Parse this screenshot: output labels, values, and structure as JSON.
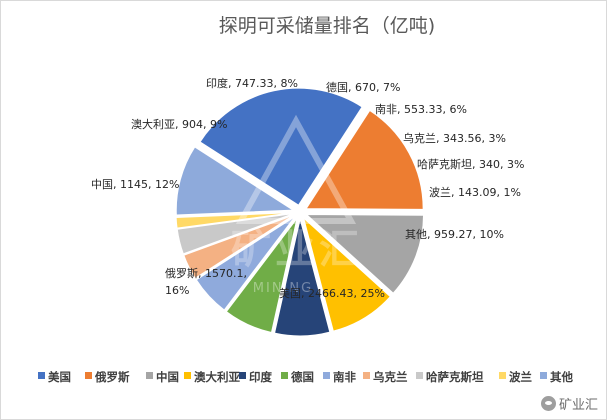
{
  "chart_data": {
    "type": "pie",
    "title": "探明可采储量排名（亿吨)",
    "series": [
      {
        "name": "美国",
        "value": 2466.43,
        "percent": "25%",
        "label": "美国, 2466.43, 25%",
        "color": "#4472c4"
      },
      {
        "name": "俄罗斯",
        "value": 1570.1,
        "percent": "16%",
        "label_line1": "俄罗斯, 1570.1,",
        "label_line2": "16%",
        "color": "#ed7d31"
      },
      {
        "name": "中国",
        "value": 1145,
        "percent": "12%",
        "label": "中国, 1145, 12%",
        "color": "#a5a5a5"
      },
      {
        "name": "澳大利亚",
        "value": 904,
        "percent": "9%",
        "label": "澳大利亚, 904, 9%",
        "color": "#ffc000"
      },
      {
        "name": "印度",
        "value": 747.33,
        "percent": "8%",
        "label": "印度, 747.33, 8%",
        "color": "#264478"
      },
      {
        "name": "德国",
        "value": 670,
        "percent": "7%",
        "label": "德国, 670, 7%",
        "color": "#70ad47"
      },
      {
        "name": "南非",
        "value": 553.33,
        "percent": "6%",
        "label": "南非, 553.33, 6%",
        "color": "#8faadc"
      },
      {
        "name": "乌克兰",
        "value": 343.56,
        "percent": "3%",
        "label": "乌克兰, 343.56, 3%",
        "color": "#f4b183"
      },
      {
        "name": "哈萨克斯坦",
        "value": 340,
        "percent": "3%",
        "label": "哈萨克斯坦, 340, 3%",
        "color": "#c9c9c9"
      },
      {
        "name": "波兰",
        "value": 143.09,
        "percent": "1%",
        "label": "波兰, 143.09, 1%",
        "color": "#ffd966"
      },
      {
        "name": "其他",
        "value": 959.27,
        "percent": "10%",
        "label": "其他, 959.27, 10%",
        "color": "#8eaadb"
      }
    ],
    "legend": {
      "position": "bottom"
    }
  },
  "watermark": {
    "cn": "矿业汇",
    "en": "MINING"
  },
  "corner_watermark": {
    "text": "矿业汇",
    "icon": "wechat-icon"
  }
}
